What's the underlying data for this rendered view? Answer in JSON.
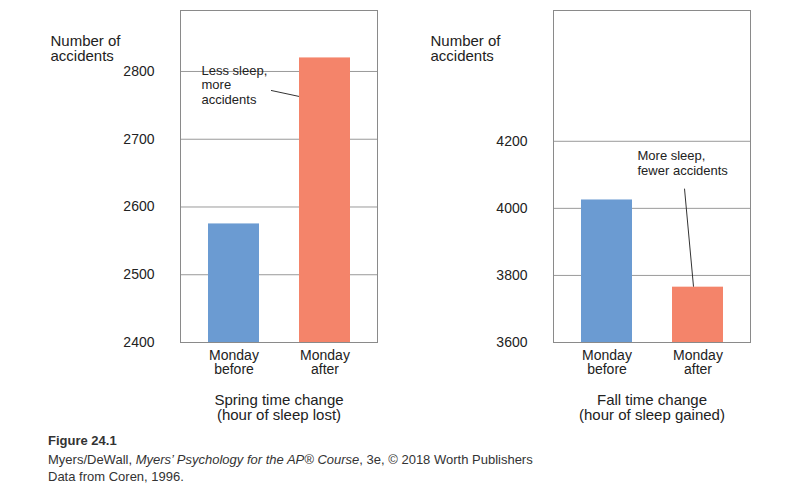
{
  "chart_data": [
    {
      "type": "bar",
      "categories": [
        "Monday\nbefore",
        "Monday\nafter"
      ],
      "values": [
        2575,
        2820
      ],
      "colors": [
        "#6b9bd2",
        "#f4846a"
      ],
      "y_label": "Number of\naccidents",
      "x_label": "Spring time change\n(hour of sleep lost)",
      "ylim": [
        2400,
        2890
      ],
      "yticks": [
        2400,
        2500,
        2600,
        2700,
        2800
      ],
      "grid": true,
      "annotation": {
        "text": "Less sleep,\nmore\naccidents",
        "category": "Monday\nafter"
      }
    },
    {
      "type": "bar",
      "categories": [
        "Monday\nbefore",
        "Monday\nafter"
      ],
      "values": [
        4025,
        3765
      ],
      "colors": [
        "#6b9bd2",
        "#f4846a"
      ],
      "y_label": "Number of\naccidents",
      "x_label": "Fall time change\n(hour of sleep gained)",
      "ylim": [
        3600,
        4590
      ],
      "yticks": [
        3600,
        3800,
        4000,
        4200
      ],
      "grid": true,
      "annotation": {
        "text": "More sleep,\nfewer accidents",
        "category": "Monday\nafter"
      }
    }
  ],
  "caption": {
    "label": "Figure 24.1",
    "credit": [
      "Myers/DeWall, ",
      "Myers’ Psychology for the AP® Course",
      ", 3e, © 2018 Worth Publishers"
    ],
    "source": "Data from Coren, 1996."
  }
}
